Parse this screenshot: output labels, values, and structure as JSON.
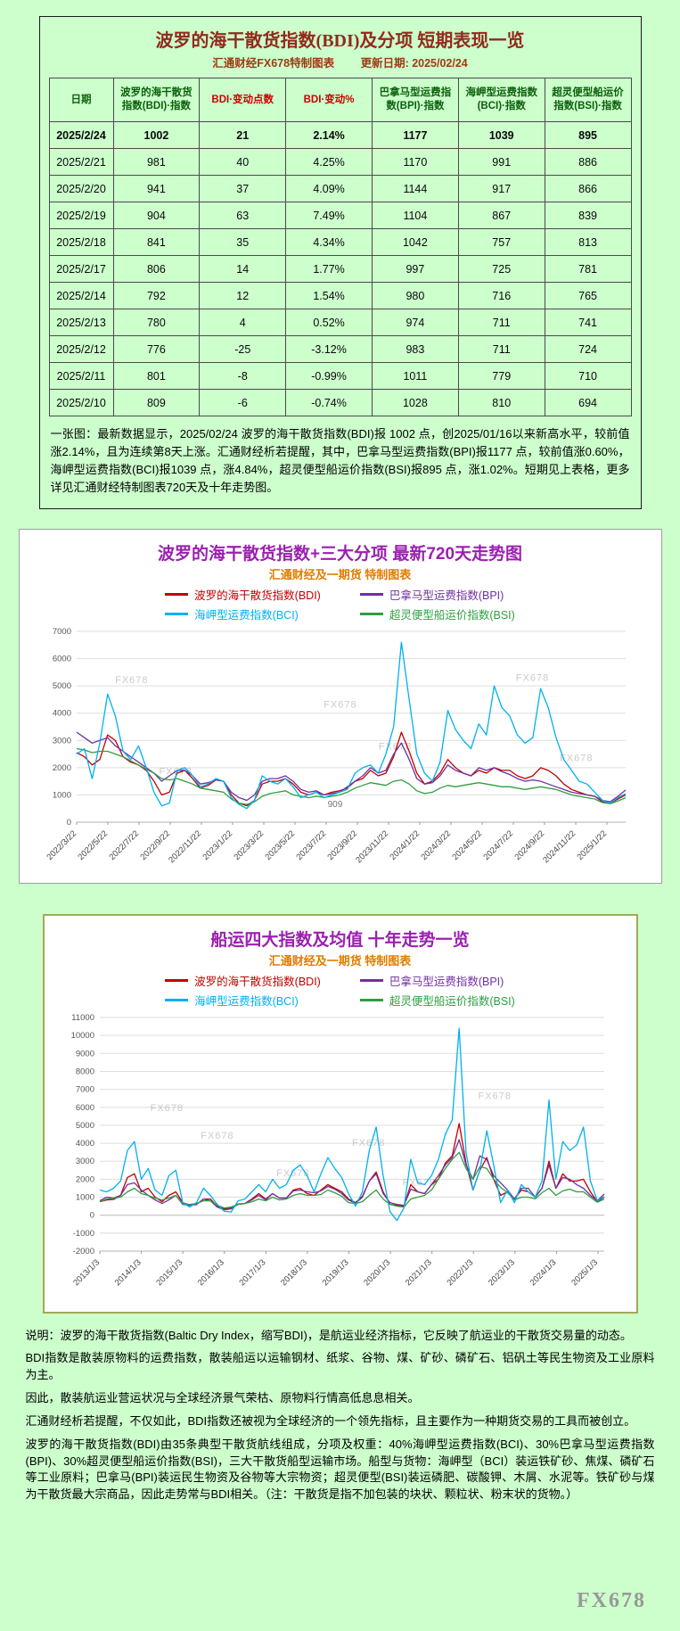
{
  "page": {
    "background": "#ccffcc"
  },
  "colors": {
    "section_title": "#93291c",
    "table_header_green": "#0b5f0b",
    "table_header_red": "#cc0000",
    "chart_title_purple": "#9b1fb0",
    "chart_subtitle_orange": "#e07c00"
  },
  "table_section": {
    "title": "波罗的海干散货指数(BDI)及分项 短期表现一览",
    "source": "汇通财经FX678特制图表",
    "update": "更新日期: 2025/02/24",
    "columns": [
      "日期",
      "波罗的海干散货指数(BDI)·指数",
      "BDI·变动点数",
      "BDI·变动%",
      "巴拿马型运费指数(BPI)·指数",
      "海岬型运费指数(BCI)·指数",
      "超灵便型船运价指数(BSI)·指数"
    ],
    "rows": [
      [
        "2025/2/24",
        "1002",
        "21",
        "2.14%",
        "1177",
        "1039",
        "895"
      ],
      [
        "2025/2/21",
        "981",
        "40",
        "4.25%",
        "1170",
        "991",
        "886"
      ],
      [
        "2025/2/20",
        "941",
        "37",
        "4.09%",
        "1144",
        "917",
        "866"
      ],
      [
        "2025/2/19",
        "904",
        "63",
        "7.49%",
        "1104",
        "867",
        "839"
      ],
      [
        "2025/2/18",
        "841",
        "35",
        "4.34%",
        "1042",
        "757",
        "813"
      ],
      [
        "2025/2/17",
        "806",
        "14",
        "1.77%",
        "997",
        "725",
        "781"
      ],
      [
        "2025/2/14",
        "792",
        "12",
        "1.54%",
        "980",
        "716",
        "765"
      ],
      [
        "2025/2/13",
        "780",
        "4",
        "0.52%",
        "974",
        "711",
        "741"
      ],
      [
        "2025/2/12",
        "776",
        "-25",
        "-3.12%",
        "983",
        "711",
        "724"
      ],
      [
        "2025/2/11",
        "801",
        "-8",
        "-0.99%",
        "1011",
        "779",
        "710"
      ],
      [
        "2025/2/10",
        "809",
        "-6",
        "-0.74%",
        "1028",
        "810",
        "694"
      ]
    ],
    "note": "一张图：最新数据显示，2025/02/24 波罗的海干散货指数(BDI)报 1002 点，创2025/01/16以来新高水平，较前值涨2.14%，且为连续第8天上涨。汇通财经析若提醒，其中，巴拿马型运费指数(BPI)报1177 点，较前值涨0.60%，海岬型运费指数(BCI)报1039 点，涨4.84%，超灵便型船运价指数(BSI)报895 点，涨1.02%。短期见上表格，更多详见汇通财经特制图表720天及十年走势图。"
  },
  "chart_data": [
    {
      "type": "line",
      "title": "波罗的海干散货指数+三大分项 最新720天走势图",
      "subtitle": "汇通财经及一期货 特制图表",
      "watermark_text": "FX678",
      "legend_position": "top",
      "grid": "horizontal",
      "ylim": [
        0,
        7000
      ],
      "ystep": 1000,
      "x_total": 35.2,
      "xtick_offsets": [
        0,
        2,
        4,
        6,
        8,
        10,
        12,
        14,
        16,
        18,
        20,
        22,
        24,
        26,
        28,
        30,
        32,
        34
      ],
      "xticks": [
        "2022/3/22",
        "2022/5/22",
        "2022/7/22",
        "2022/9/22",
        "2022/11/22",
        "2023/1/22",
        "2023/3/22",
        "2023/5/22",
        "2023/7/22",
        "2023/9/22",
        "2023/11/22",
        "2024/1/22",
        "2024/3/22",
        "2024/5/22",
        "2024/7/22",
        "2024/9/22",
        "2024/11/22",
        "2025/1/22"
      ],
      "draw_order": [
        0,
        1,
        3,
        2
      ],
      "watermarks": [
        [
          0.07,
          0.27
        ],
        [
          0.8,
          0.26
        ],
        [
          0.45,
          0.4
        ],
        [
          0.88,
          0.68
        ],
        [
          0.15,
          0.75
        ],
        [
          0.55,
          0.62
        ]
      ],
      "annotations": [
        {
          "series": "BSI",
          "index": 32,
          "text": "909"
        }
      ],
      "series": [
        {
          "key": "BDI",
          "name": "波罗的海干散货指数(BDI)",
          "color": "#c00000",
          "values": [
            2550,
            2400,
            2100,
            2300,
            3200,
            3000,
            2400,
            2200,
            2100,
            1900,
            1500,
            1000,
            1100,
            1800,
            1900,
            1600,
            1250,
            1350,
            1550,
            1500,
            1000,
            700,
            600,
            800,
            1400,
            1500,
            1500,
            1600,
            1400,
            1100,
            1000,
            1100,
            1000,
            1100,
            1150,
            1250,
            1500,
            1600,
            1900,
            1700,
            1800,
            2400,
            3300,
            2600,
            1800,
            1400,
            1500,
            1800,
            2300,
            2000,
            1800,
            1700,
            1900,
            1800,
            2000,
            1900,
            1900,
            1700,
            1600,
            1700,
            2000,
            1900,
            1700,
            1400,
            1200,
            1100,
            1000,
            950,
            750,
            700,
            850,
            1002
          ]
        },
        {
          "key": "BPI",
          "name": "巴拿马型运费指数(BPI)",
          "color": "#7030a0",
          "values": [
            3300,
            3100,
            2900,
            3000,
            3100,
            2800,
            2600,
            2400,
            2200,
            2000,
            1800,
            1500,
            1700,
            1900,
            1900,
            1700,
            1400,
            1450,
            1550,
            1500,
            1100,
            900,
            800,
            1000,
            1500,
            1600,
            1600,
            1700,
            1500,
            1200,
            1100,
            1150,
            1000,
            1050,
            1100,
            1300,
            1500,
            1700,
            2000,
            1800,
            1900,
            2500,
            2900,
            2300,
            1600,
            1400,
            1450,
            1700,
            2100,
            1900,
            1800,
            1700,
            2000,
            1900,
            2000,
            1850,
            1750,
            1600,
            1500,
            1550,
            1500,
            1400,
            1300,
            1200,
            1100,
            1050,
            1000,
            950,
            800,
            750,
            950,
            1177
          ]
        },
        {
          "key": "BCI",
          "name": "海岬型运费指数(BCI)",
          "color": "#00b0f0",
          "values": [
            2500,
            2700,
            1600,
            2900,
            4700,
            3900,
            2600,
            2300,
            2800,
            2000,
            1100,
            600,
            700,
            1900,
            2000,
            1700,
            1300,
            1400,
            1600,
            1500,
            900,
            650,
            500,
            800,
            1700,
            1500,
            1400,
            1600,
            1300,
            900,
            1000,
            1100,
            900,
            1000,
            1100,
            1200,
            1800,
            2000,
            2100,
            1800,
            2500,
            3500,
            6600,
            4500,
            2500,
            1800,
            1500,
            2200,
            4100,
            3400,
            3000,
            2700,
            3600,
            3200,
            5000,
            4200,
            3900,
            3200,
            2900,
            3100,
            4900,
            4200,
            3100,
            2300,
            1900,
            1500,
            1400,
            1100,
            800,
            700,
            900,
            1039
          ]
        },
        {
          "key": "BSI",
          "name": "超灵便型船运价指数(BSI)",
          "color": "#2e9e3f",
          "values": [
            2700,
            2650,
            2550,
            2600,
            2600,
            2500,
            2400,
            2250,
            2100,
            1950,
            1800,
            1600,
            1550,
            1600,
            1500,
            1400,
            1250,
            1200,
            1150,
            1100,
            850,
            700,
            650,
            750,
            950,
            1050,
            1100,
            1150,
            1000,
            950,
            900,
            950,
            909,
            950,
            1000,
            1100,
            1250,
            1350,
            1450,
            1400,
            1350,
            1500,
            1550,
            1400,
            1150,
            1050,
            1100,
            1250,
            1350,
            1300,
            1350,
            1400,
            1450,
            1400,
            1350,
            1300,
            1300,
            1250,
            1200,
            1250,
            1300,
            1250,
            1200,
            1100,
            1000,
            950,
            900,
            850,
            720,
            680,
            780,
            895
          ]
        }
      ]
    },
    {
      "type": "line",
      "title": "船运四大指数及均值 十年走势一览",
      "subtitle": "汇通财经及一期货 特制图表",
      "watermark_text": "FX678",
      "legend_position": "top",
      "grid": "horizontal",
      "ylim": [
        -2000,
        11000
      ],
      "ystep": 1000,
      "x_total": 145.8,
      "xtick_offsets": [
        0,
        12,
        24,
        36,
        48,
        60,
        72,
        84,
        96,
        108,
        120,
        132,
        144
      ],
      "xticks": [
        "2013/1/3",
        "2014/1/3",
        "2015/1/3",
        "2016/1/3",
        "2017/1/3",
        "2018/1/3",
        "2019/1/3",
        "2020/1/3",
        "2021/1/3",
        "2022/1/3",
        "2023/1/3",
        "2024/1/3",
        "2025/1/3"
      ],
      "draw_order": [
        0,
        1,
        3,
        2
      ],
      "watermarks": [
        [
          0.2,
          0.52
        ],
        [
          0.5,
          0.55
        ],
        [
          0.75,
          0.35
        ],
        [
          0.35,
          0.68
        ],
        [
          0.6,
          0.72
        ],
        [
          0.1,
          0.4
        ]
      ],
      "annotations": [],
      "series": [
        {
          "key": "BDI",
          "name": "波罗的海干散货指数(BDI)",
          "color": "#c00000",
          "values": [
            750,
            850,
            880,
            1100,
            2100,
            2300,
            1300,
            1500,
            1000,
            750,
            1100,
            1300,
            700,
            560,
            590,
            900,
            900,
            500,
            350,
            400,
            620,
            650,
            900,
            1200,
            900,
            1200,
            950,
            950,
            1400,
            1500,
            1200,
            1100,
            1400,
            1700,
            1500,
            1300,
            900,
            700,
            1050,
            1900,
            2400,
            1300,
            600,
            550,
            500,
            1700,
            1300,
            1200,
            1700,
            2000,
            2900,
            3300,
            5100,
            2900,
            1400,
            2500,
            3200,
            2000,
            1100,
            1300,
            900,
            1400,
            1300,
            1000,
            1500,
            3000,
            1500,
            2300,
            1900,
            1900,
            2000,
            1300,
            750,
            1002
          ]
        },
        {
          "key": "BPI",
          "name": "巴拿马型运费指数(BPI)",
          "color": "#7030a0",
          "values": [
            800,
            1000,
            950,
            1100,
            1700,
            1800,
            1400,
            1100,
            850,
            650,
            850,
            1100,
            600,
            550,
            600,
            900,
            800,
            450,
            300,
            350,
            600,
            650,
            850,
            1100,
            850,
            1200,
            950,
            950,
            1350,
            1400,
            1300,
            1250,
            1350,
            1600,
            1450,
            1200,
            850,
            650,
            1000,
            1900,
            2300,
            1200,
            700,
            600,
            550,
            1450,
            1300,
            1200,
            1700,
            2200,
            2800,
            3200,
            4200,
            2800,
            2000,
            3300,
            3100,
            2200,
            1800,
            1400,
            900,
            1500,
            1500,
            1000,
            1500,
            2800,
            1500,
            2100,
            2000,
            1700,
            1500,
            1100,
            800,
            1177
          ]
        },
        {
          "key": "BCI",
          "name": "海岬型运费指数(BCI)",
          "color": "#00b0f0",
          "values": [
            1400,
            1300,
            1500,
            1900,
            3600,
            4100,
            2000,
            2600,
            1400,
            1100,
            2200,
            2500,
            700,
            450,
            700,
            1500,
            1100,
            600,
            220,
            180,
            800,
            900,
            1300,
            1700,
            1300,
            2000,
            1500,
            1700,
            2500,
            2800,
            2200,
            1300,
            2300,
            3200,
            2600,
            2100,
            1200,
            500,
            1300,
            3600,
            4900,
            2200,
            200,
            -300,
            400,
            3100,
            1800,
            1700,
            2200,
            3100,
            4500,
            5300,
            10400,
            3500,
            1400,
            2500,
            4700,
            2800,
            700,
            1400,
            700,
            1700,
            1300,
            1000,
            1900,
            6400,
            2000,
            4100,
            3600,
            3900,
            4900,
            1900,
            800,
            1039
          ]
        },
        {
          "key": "BSI",
          "name": "超灵便型船运价指数(BSI)",
          "color": "#2e9e3f",
          "values": [
            750,
            900,
            950,
            1000,
            1300,
            1500,
            1200,
            1100,
            950,
            850,
            950,
            1100,
            650,
            600,
            650,
            800,
            800,
            550,
            400,
            450,
            600,
            650,
            750,
            900,
            800,
            1000,
            850,
            900,
            1100,
            1200,
            1100,
            1100,
            1150,
            1400,
            1250,
            1050,
            700,
            650,
            750,
            1100,
            1400,
            900,
            600,
            500,
            450,
            900,
            1000,
            1100,
            1400,
            2000,
            2600,
            3100,
            3500,
            2600,
            2000,
            2700,
            2600,
            2000,
            1550,
            1250,
            850,
            1000,
            1000,
            909,
            1250,
            1500,
            1100,
            1350,
            1450,
            1300,
            1300,
            1000,
            720,
            895
          ]
        }
      ]
    }
  ],
  "footer": {
    "lines": [
      "说明：波罗的海干散货指数(Baltic Dry Index，缩写BDI)，是航运业经济指标，它反映了航运业的干散货交易量的动态。",
      "BDI指数是散装原物料的运费指数，散装船运以运输钢材、纸浆、谷物、煤、矿砂、磷矿石、铝矾土等民生物资及工业原料为主。",
      "因此，散装航运业营运状况与全球经济景气荣枯、原物料行情高低息息相关。",
      "汇通财经析若提醒，不仅如此，BDI指数还被视为全球经济的一个领先指标，且主要作为一种期货交易的工具而被创立。",
      "波罗的海干散货指数(BDI)由35条典型干散货航线组成，分项及权重：40%海岬型运费指数(BCI)、30%巴拿马型运费指数(BPI)、30%超灵便型船运价指数(BSI)，三大干散货船型运输市场。船型与货物：海岬型（BCI）装运铁矿砂、焦煤、磷矿石等工业原料；巴拿马(BPI)装运民生物资及谷物等大宗物资；超灵便型(BSI)装运磷肥、碳酸钾、木屑、水泥等。铁矿砂与煤为干散货最大宗商品，因此走势常与BDI相关。（注：干散货是指不加包装的块状、颗粒状、粉末状的货物。）"
    ],
    "watermark": "FX678"
  }
}
